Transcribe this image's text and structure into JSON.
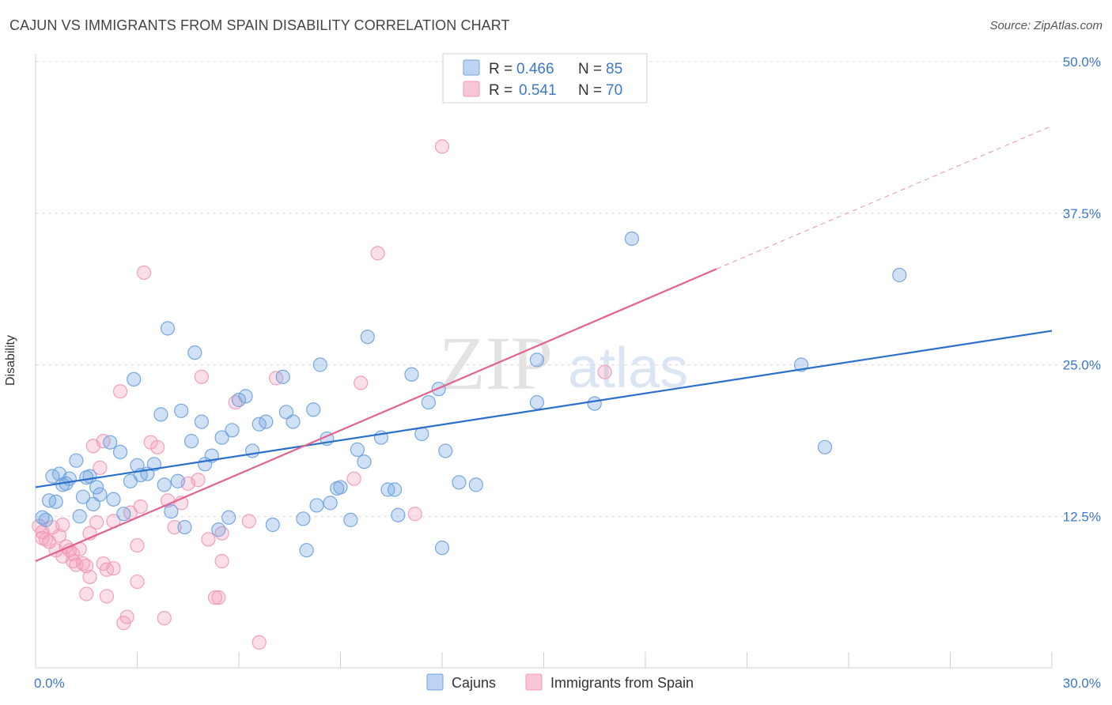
{
  "header": {
    "title": "CAJUN VS IMMIGRANTS FROM SPAIN DISABILITY CORRELATION CHART",
    "source": "Source: ZipAtlas.com"
  },
  "watermark": {
    "zip": "ZIP",
    "atlas": "atlas"
  },
  "chart_data": {
    "type": "scatter",
    "ylabel": "Disability",
    "xlim": [
      0,
      30
    ],
    "ylim": [
      0,
      50
    ],
    "x_tick_labels": [
      "0.0%",
      "30.0%"
    ],
    "y_ticks": [
      12.5,
      25.0,
      37.5,
      50.0
    ],
    "y_tick_labels": [
      "12.5%",
      "25.0%",
      "37.5%",
      "50.0%"
    ],
    "grid": true,
    "legend_position": "top-center",
    "legend": [
      {
        "r_label": "R =",
        "r_value": "0.466",
        "n_label": "N =",
        "n_value": "85"
      },
      {
        "r_label": "R =",
        "r_value": "0.541",
        "n_label": "N =",
        "n_value": "70"
      }
    ],
    "series": [
      {
        "name": "Cajuns",
        "color": "#6fa3e0",
        "line_color": "#2a6fcc",
        "trend": {
          "x0": 0,
          "y0": 14.9,
          "x1": 30,
          "y1": 27.8
        },
        "points": [
          [
            0.2,
            12.4
          ],
          [
            0.3,
            12.2
          ],
          [
            0.4,
            13.8
          ],
          [
            0.5,
            15.8
          ],
          [
            0.6,
            13.7
          ],
          [
            0.7,
            16.0
          ],
          [
            0.8,
            15.1
          ],
          [
            0.9,
            15.2
          ],
          [
            1.0,
            15.6
          ],
          [
            1.2,
            17.1
          ],
          [
            1.3,
            12.5
          ],
          [
            1.4,
            14.1
          ],
          [
            1.5,
            15.7
          ],
          [
            1.6,
            15.8
          ],
          [
            1.7,
            13.5
          ],
          [
            1.8,
            14.9
          ],
          [
            1.9,
            14.3
          ],
          [
            2.2,
            18.6
          ],
          [
            2.3,
            13.9
          ],
          [
            2.5,
            17.8
          ],
          [
            2.6,
            12.7
          ],
          [
            2.8,
            15.4
          ],
          [
            2.9,
            23.8
          ],
          [
            3.0,
            16.7
          ],
          [
            3.1,
            15.9
          ],
          [
            3.3,
            16.0
          ],
          [
            3.5,
            16.8
          ],
          [
            3.7,
            20.9
          ],
          [
            3.8,
            15.1
          ],
          [
            3.9,
            28.0
          ],
          [
            4.0,
            12.9
          ],
          [
            4.2,
            15.4
          ],
          [
            4.3,
            21.2
          ],
          [
            4.4,
            11.6
          ],
          [
            4.6,
            18.7
          ],
          [
            4.7,
            26.0
          ],
          [
            4.9,
            20.3
          ],
          [
            5.0,
            16.8
          ],
          [
            5.2,
            17.5
          ],
          [
            5.4,
            11.4
          ],
          [
            5.5,
            19.0
          ],
          [
            5.7,
            12.4
          ],
          [
            5.8,
            19.6
          ],
          [
            6.0,
            22.1
          ],
          [
            6.2,
            22.4
          ],
          [
            6.4,
            17.9
          ],
          [
            6.6,
            20.1
          ],
          [
            6.8,
            20.3
          ],
          [
            7.0,
            11.8
          ],
          [
            7.3,
            24.0
          ],
          [
            7.4,
            21.1
          ],
          [
            7.6,
            20.3
          ],
          [
            7.9,
            12.3
          ],
          [
            8.0,
            9.7
          ],
          [
            8.2,
            21.3
          ],
          [
            8.3,
            13.4
          ],
          [
            8.4,
            25.0
          ],
          [
            8.6,
            18.9
          ],
          [
            8.7,
            13.6
          ],
          [
            8.9,
            14.8
          ],
          [
            9.0,
            14.9
          ],
          [
            9.3,
            12.2
          ],
          [
            9.5,
            18.0
          ],
          [
            9.7,
            17.0
          ],
          [
            9.8,
            27.3
          ],
          [
            10.2,
            19.0
          ],
          [
            10.4,
            14.7
          ],
          [
            10.6,
            14.7
          ],
          [
            10.7,
            12.6
          ],
          [
            11.1,
            24.2
          ],
          [
            11.4,
            19.3
          ],
          [
            11.6,
            21.9
          ],
          [
            11.9,
            23.0
          ],
          [
            12.0,
            9.9
          ],
          [
            12.1,
            17.9
          ],
          [
            12.5,
            15.3
          ],
          [
            13.0,
            15.1
          ],
          [
            14.8,
            25.4
          ],
          [
            14.8,
            21.9
          ],
          [
            16.5,
            21.8
          ],
          [
            17.6,
            35.4
          ],
          [
            22.6,
            25.0
          ],
          [
            23.3,
            18.2
          ],
          [
            25.5,
            32.4
          ]
        ]
      },
      {
        "name": "Immigrants from Spain",
        "color": "#f29ab8",
        "line_color": "#e2628e",
        "trend": {
          "x0": 0,
          "y0": 8.8,
          "x1": 20.1,
          "y1": 32.9
        },
        "trend_dashed": {
          "x0": 20.1,
          "y0": 32.9,
          "x1": 30,
          "y1": 44.7
        },
        "points": [
          [
            0.1,
            11.7
          ],
          [
            0.2,
            11.2
          ],
          [
            0.2,
            10.7
          ],
          [
            0.3,
            10.6
          ],
          [
            0.4,
            10.4
          ],
          [
            0.5,
            11.6
          ],
          [
            0.6,
            9.7
          ],
          [
            0.7,
            10.9
          ],
          [
            0.8,
            9.2
          ],
          [
            0.8,
            11.8
          ],
          [
            0.9,
            10.0
          ],
          [
            1.0,
            9.7
          ],
          [
            1.1,
            8.8
          ],
          [
            1.1,
            9.4
          ],
          [
            1.2,
            8.5
          ],
          [
            1.3,
            9.8
          ],
          [
            1.4,
            8.6
          ],
          [
            1.5,
            8.4
          ],
          [
            1.5,
            6.1
          ],
          [
            1.6,
            7.5
          ],
          [
            1.6,
            11.1
          ],
          [
            1.7,
            18.3
          ],
          [
            1.8,
            12.0
          ],
          [
            1.9,
            16.5
          ],
          [
            2.0,
            8.6
          ],
          [
            2.0,
            18.7
          ],
          [
            2.1,
            8.1
          ],
          [
            2.1,
            5.9
          ],
          [
            2.3,
            12.1
          ],
          [
            2.3,
            8.2
          ],
          [
            2.5,
            22.8
          ],
          [
            2.6,
            3.7
          ],
          [
            2.7,
            4.2
          ],
          [
            2.8,
            12.8
          ],
          [
            3.0,
            10.1
          ],
          [
            3.0,
            7.1
          ],
          [
            3.1,
            13.3
          ],
          [
            3.2,
            32.6
          ],
          [
            3.4,
            18.6
          ],
          [
            3.6,
            18.2
          ],
          [
            3.8,
            4.1
          ],
          [
            3.9,
            13.8
          ],
          [
            4.1,
            11.6
          ],
          [
            4.3,
            13.6
          ],
          [
            4.5,
            15.2
          ],
          [
            4.8,
            15.5
          ],
          [
            4.9,
            24.0
          ],
          [
            5.1,
            10.6
          ],
          [
            5.3,
            5.8
          ],
          [
            5.4,
            5.8
          ],
          [
            5.5,
            11.1
          ],
          [
            5.5,
            8.8
          ],
          [
            5.9,
            21.9
          ],
          [
            6.3,
            12.1
          ],
          [
            6.6,
            2.1
          ],
          [
            7.1,
            23.9
          ],
          [
            9.4,
            15.6
          ],
          [
            9.6,
            23.5
          ],
          [
            10.1,
            34.2
          ],
          [
            11.2,
            12.7
          ],
          [
            12.0,
            43.0
          ],
          [
            16.8,
            24.4
          ]
        ]
      }
    ]
  }
}
